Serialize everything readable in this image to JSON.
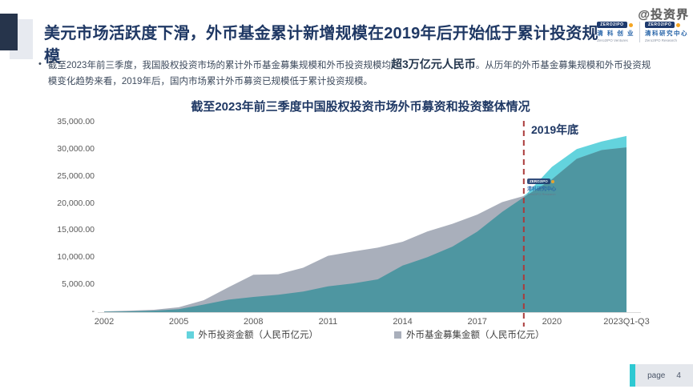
{
  "slide": {
    "title": "美元市场活跃度下滑，外币基金累计新增规模在2019年后开始低于累计投资规模",
    "bullet": {
      "marker": "•",
      "pre": "截至2023年前三季度，我国股权投资市场的累计外币基金募集规模和外币投资规模均",
      "bold": "超3万亿元人民币",
      "post": "。从历年的外币基金募集规模和外币投资规模变化趋势来看，2019年后，国内市场累计外币募资已规模低于累计投资规模。"
    },
    "watermark": "@投资界",
    "logo": {
      "badge": "ZERO2IPO",
      "left_cn": "清 科 创 业",
      "left_en": "Zero2IPO Ventures",
      "right_cn": "清科研究中心",
      "right_en": "Zero2IPO Research"
    },
    "chart_watermark": {
      "badge": "ZERO2IPO",
      "cn": "清科研究中心",
      "en": "Zero2IPO Research"
    },
    "footer": {
      "page_label": "page",
      "page_number": "4"
    }
  },
  "chart_data": {
    "type": "area",
    "title": "截至2023年前三季度中国股权投资市场外币募资和投资整体情况",
    "x": [
      "2002",
      "2003",
      "2004",
      "2005",
      "2006",
      "2007",
      "2008",
      "2009",
      "2010",
      "2011",
      "2012",
      "2013",
      "2014",
      "2015",
      "2016",
      "2017",
      "2018",
      "2019",
      "2020",
      "2021",
      "2022",
      "2023Q1-Q3"
    ],
    "series": [
      {
        "name": "外币投资金额（人民币亿元）",
        "color": "#63D3DD",
        "values": [
          80,
          150,
          280,
          550,
          1400,
          2300,
          2800,
          3200,
          3800,
          4750,
          5300,
          6050,
          8600,
          10150,
          12100,
          14850,
          18500,
          21900,
          26800,
          30100,
          31500,
          32500
        ]
      },
      {
        "name": "外币基金募集金额（人民币亿元）",
        "color": "#A9AFBB",
        "values": [
          150,
          280,
          450,
          900,
          2200,
          4600,
          6900,
          7000,
          8200,
          10400,
          11200,
          11900,
          13000,
          14900,
          16300,
          18000,
          20300,
          21600,
          24500,
          28300,
          29900,
          30400
        ]
      }
    ],
    "overlap_color": "#4E96A1",
    "ylim": [
      0,
      35000
    ],
    "y_ticks": [
      {
        "label": "35,000.00",
        "value": 35000
      },
      {
        "label": "30,000.00",
        "value": 30000
      },
      {
        "label": "25,000.00",
        "value": 25000
      },
      {
        "label": "20,000.00",
        "value": 20000
      },
      {
        "label": "15,000.00",
        "value": 15000
      },
      {
        "label": "10,000.00",
        "value": 10000
      },
      {
        "label": "5,000.00",
        "value": 5000
      },
      {
        "label": "-",
        "value": 0
      }
    ],
    "x_ticks": [
      {
        "label": "2002",
        "index": 0
      },
      {
        "label": "2005",
        "index": 3
      },
      {
        "label": "2008",
        "index": 6
      },
      {
        "label": "2011",
        "index": 9
      },
      {
        "label": "2014",
        "index": 12
      },
      {
        "label": "2017",
        "index": 15
      },
      {
        "label": "2020",
        "index": 18
      },
      {
        "label": "2023Q1-Q3",
        "index": 21
      }
    ],
    "annotation": {
      "label": "2019年底",
      "x_year": "2019",
      "line_color": "#AA3B3B"
    },
    "legend_position": "bottom",
    "grid": false
  }
}
